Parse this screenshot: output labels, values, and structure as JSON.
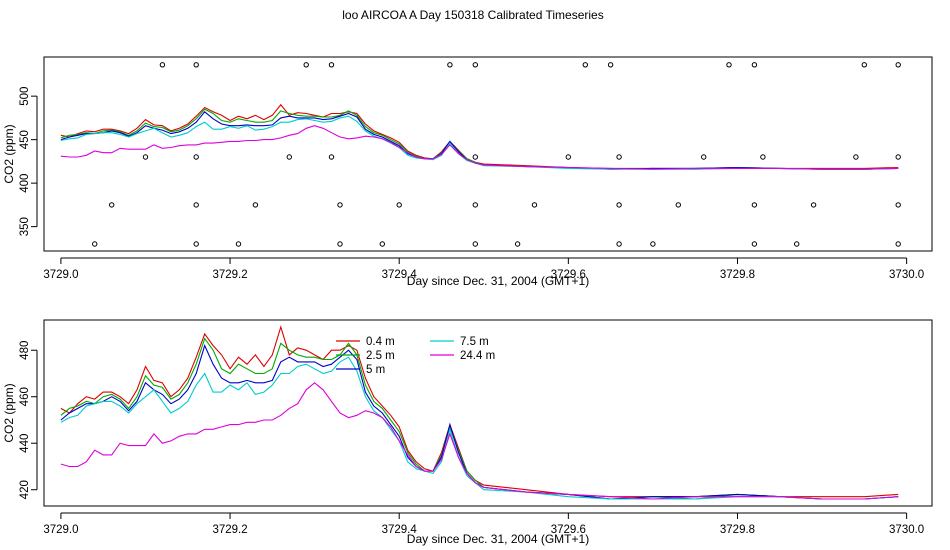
{
  "title": "loo AIRCOA A  Day 150318  Calibrated Timeseries",
  "chart_data": [
    {
      "type": "line",
      "xlabel": "Day since Dec. 31, 2004 (GMT+1)",
      "ylabel": "CO2 (ppm)",
      "xlim": [
        3728.98,
        3730.03
      ],
      "ylim": [
        322,
        545
      ],
      "xticks": [
        3729.0,
        3729.2,
        3729.4,
        3729.6,
        3729.8,
        3730.0
      ],
      "xtick_labels": [
        "3729.0",
        "3729.2",
        "3729.4",
        "3729.6",
        "3729.8",
        "3730.0"
      ],
      "yticks": [
        350,
        400,
        450,
        500
      ],
      "ytick_labels": [
        "350",
        "400",
        "450",
        "500"
      ],
      "x": [
        3729.0,
        3729.01,
        3729.02,
        3729.03,
        3729.04,
        3729.05,
        3729.06,
        3729.07,
        3729.08,
        3729.09,
        3729.1,
        3729.11,
        3729.12,
        3729.13,
        3729.14,
        3729.15,
        3729.16,
        3729.17,
        3729.18,
        3729.19,
        3729.2,
        3729.21,
        3729.22,
        3729.23,
        3729.24,
        3729.25,
        3729.26,
        3729.27,
        3729.28,
        3729.29,
        3729.3,
        3729.31,
        3729.32,
        3729.33,
        3729.34,
        3729.35,
        3729.36,
        3729.37,
        3729.38,
        3729.39,
        3729.4,
        3729.41,
        3729.42,
        3729.43,
        3729.44,
        3729.45,
        3729.46,
        3729.47,
        3729.48,
        3729.49,
        3729.5,
        3729.55,
        3729.6,
        3729.65,
        3729.7,
        3729.75,
        3729.8,
        3729.85,
        3729.9,
        3729.95,
        3729.99
      ],
      "series": [
        {
          "color": "#dd0000",
          "values": [
            455,
            453,
            457,
            460,
            459,
            462,
            462,
            460,
            457,
            463,
            473,
            467,
            466,
            460,
            463,
            468,
            477,
            487,
            482,
            478,
            472,
            477,
            474,
            478,
            473,
            478,
            490,
            478,
            481,
            480,
            478,
            476,
            480,
            480,
            482,
            480,
            468,
            460,
            456,
            452,
            447,
            437,
            432,
            429,
            428,
            436,
            448,
            438,
            428,
            424,
            422,
            420,
            418,
            417,
            417,
            417,
            418,
            417,
            417,
            417,
            418
          ]
        },
        {
          "color": "#00aa00",
          "values": [
            452,
            455,
            456,
            458,
            457,
            460,
            461,
            459,
            455,
            460,
            469,
            465,
            464,
            459,
            461,
            466,
            474,
            485,
            480,
            472,
            470,
            474,
            472,
            470,
            470,
            472,
            483,
            480,
            478,
            477,
            477,
            476,
            476,
            478,
            483,
            478,
            465,
            458,
            455,
            450,
            445,
            436,
            431,
            428,
            428,
            435,
            447,
            437,
            428,
            424,
            421,
            419,
            418,
            416,
            417,
            416,
            418,
            417,
            416,
            416,
            417
          ]
        },
        {
          "color": "#0000cc",
          "values": [
            450,
            453,
            455,
            457,
            457,
            458,
            460,
            458,
            454,
            458,
            466,
            463,
            461,
            457,
            459,
            463,
            470,
            482,
            474,
            468,
            466,
            466,
            467,
            466,
            466,
            467,
            475,
            477,
            475,
            475,
            475,
            473,
            474,
            477,
            480,
            476,
            462,
            456,
            453,
            448,
            443,
            434,
            430,
            428,
            428,
            434,
            448,
            436,
            427,
            423,
            421,
            419,
            418,
            416,
            417,
            417,
            418,
            417,
            416,
            416,
            417
          ]
        },
        {
          "color": "#00cccc",
          "values": [
            449,
            451,
            452,
            456,
            457,
            458,
            458,
            456,
            453,
            457,
            460,
            463,
            458,
            453,
            455,
            458,
            465,
            470,
            462,
            462,
            465,
            463,
            466,
            461,
            462,
            465,
            470,
            470,
            473,
            474,
            472,
            470,
            471,
            475,
            477,
            471,
            460,
            454,
            451,
            446,
            441,
            432,
            429,
            428,
            427,
            432,
            446,
            434,
            426,
            423,
            420,
            419,
            417,
            416,
            416,
            416,
            417,
            417,
            416,
            416,
            417
          ]
        },
        {
          "color": "#dd00dd",
          "values": [
            431,
            430,
            430,
            432,
            437,
            435,
            435,
            440,
            439,
            439,
            439,
            444,
            440,
            441,
            443,
            444,
            444,
            446,
            446,
            447,
            448,
            448,
            449,
            449,
            450,
            450,
            452,
            455,
            457,
            463,
            466,
            463,
            458,
            453,
            451,
            452,
            454,
            453,
            451,
            447,
            441,
            435,
            430,
            428,
            428,
            433,
            444,
            434,
            427,
            423,
            421,
            419,
            418,
            417,
            416,
            417,
            417,
            417,
            416,
            416,
            417
          ]
        }
      ],
      "scatter": {
        "x": [
          3729.12,
          3729.16,
          3729.29,
          3729.32,
          3729.46,
          3729.49,
          3729.62,
          3729.65,
          3729.79,
          3729.82,
          3729.95,
          3729.99,
          3729.1,
          3729.16,
          3729.27,
          3729.32,
          3729.49,
          3729.6,
          3729.66,
          3729.76,
          3729.83,
          3729.94,
          3729.99,
          3729.06,
          3729.16,
          3729.23,
          3729.33,
          3729.4,
          3729.49,
          3729.56,
          3729.66,
          3729.73,
          3729.82,
          3729.89,
          3729.99,
          3729.04,
          3729.16,
          3729.21,
          3729.33,
          3729.38,
          3729.49,
          3729.54,
          3729.66,
          3729.7,
          3729.82,
          3729.87,
          3729.99
        ],
        "y": [
          536,
          536,
          536,
          536,
          536,
          536,
          536,
          536,
          536,
          536,
          536,
          536,
          430,
          430,
          430,
          430,
          430,
          430,
          430,
          430,
          430,
          430,
          430,
          375,
          375,
          375,
          375,
          375,
          375,
          375,
          375,
          375,
          375,
          375,
          375,
          330,
          330,
          330,
          330,
          330,
          330,
          330,
          330,
          330,
          330,
          330,
          330
        ]
      }
    },
    {
      "type": "line",
      "xlabel": "Day since Dec. 31, 2004 (GMT+1)",
      "ylabel": "CO2 (ppm)",
      "xlim": [
        3728.98,
        3730.03
      ],
      "ylim": [
        413,
        493
      ],
      "xticks": [
        3729.0,
        3729.2,
        3729.4,
        3729.6,
        3729.8,
        3730.0
      ],
      "xtick_labels": [
        "3729.0",
        "3729.2",
        "3729.4",
        "3729.6",
        "3729.8",
        "3730.0"
      ],
      "yticks": [
        420,
        440,
        460,
        480
      ],
      "ytick_labels": [
        "420",
        "440",
        "460",
        "480"
      ],
      "legend": {
        "position": "top-center",
        "entries": [
          {
            "label": "0.4 m",
            "color": "#dd0000"
          },
          {
            "label": "2.5 m",
            "color": "#00aa00"
          },
          {
            "label": "5 m",
            "color": "#0000cc"
          },
          {
            "label": "7.5 m",
            "color": "#00cccc"
          },
          {
            "label": "24.4 m",
            "color": "#dd00dd"
          }
        ]
      },
      "x": [
        3729.0,
        3729.01,
        3729.02,
        3729.03,
        3729.04,
        3729.05,
        3729.06,
        3729.07,
        3729.08,
        3729.09,
        3729.1,
        3729.11,
        3729.12,
        3729.13,
        3729.14,
        3729.15,
        3729.16,
        3729.17,
        3729.18,
        3729.19,
        3729.2,
        3729.21,
        3729.22,
        3729.23,
        3729.24,
        3729.25,
        3729.26,
        3729.27,
        3729.28,
        3729.29,
        3729.3,
        3729.31,
        3729.32,
        3729.33,
        3729.34,
        3729.35,
        3729.36,
        3729.37,
        3729.38,
        3729.39,
        3729.4,
        3729.41,
        3729.42,
        3729.43,
        3729.44,
        3729.45,
        3729.46,
        3729.47,
        3729.48,
        3729.49,
        3729.5,
        3729.55,
        3729.6,
        3729.65,
        3729.7,
        3729.75,
        3729.8,
        3729.85,
        3729.9,
        3729.95,
        3729.99
      ],
      "series": [
        {
          "color": "#dd0000",
          "values": [
            455,
            453,
            457,
            460,
            459,
            462,
            462,
            460,
            457,
            463,
            473,
            467,
            466,
            460,
            463,
            468,
            477,
            487,
            482,
            478,
            472,
            477,
            474,
            478,
            473,
            478,
            490,
            478,
            481,
            480,
            478,
            476,
            480,
            480,
            482,
            480,
            468,
            460,
            456,
            452,
            447,
            437,
            432,
            429,
            428,
            436,
            448,
            438,
            428,
            424,
            422,
            420,
            418,
            417,
            417,
            417,
            418,
            417,
            417,
            417,
            418
          ]
        },
        {
          "color": "#00aa00",
          "values": [
            452,
            455,
            456,
            458,
            457,
            460,
            461,
            459,
            455,
            460,
            469,
            465,
            464,
            459,
            461,
            466,
            474,
            485,
            480,
            472,
            470,
            474,
            472,
            470,
            470,
            472,
            483,
            480,
            478,
            477,
            477,
            476,
            476,
            478,
            483,
            478,
            465,
            458,
            455,
            450,
            445,
            436,
            431,
            428,
            428,
            435,
            447,
            437,
            428,
            424,
            421,
            419,
            418,
            416,
            417,
            416,
            418,
            417,
            416,
            416,
            417
          ]
        },
        {
          "color": "#0000cc",
          "values": [
            450,
            453,
            455,
            457,
            457,
            458,
            460,
            458,
            454,
            458,
            466,
            463,
            461,
            457,
            459,
            463,
            470,
            482,
            474,
            468,
            466,
            466,
            467,
            466,
            466,
            467,
            475,
            477,
            475,
            475,
            475,
            473,
            474,
            477,
            480,
            476,
            462,
            456,
            453,
            448,
            443,
            434,
            430,
            428,
            428,
            434,
            448,
            436,
            427,
            423,
            421,
            419,
            418,
            416,
            417,
            417,
            418,
            417,
            416,
            416,
            417
          ]
        },
        {
          "color": "#00cccc",
          "values": [
            449,
            451,
            452,
            456,
            457,
            458,
            458,
            456,
            453,
            457,
            460,
            463,
            458,
            453,
            455,
            458,
            465,
            470,
            462,
            462,
            465,
            463,
            466,
            461,
            462,
            465,
            470,
            470,
            473,
            474,
            472,
            470,
            471,
            475,
            477,
            471,
            460,
            454,
            451,
            446,
            441,
            432,
            429,
            428,
            427,
            432,
            446,
            434,
            426,
            423,
            420,
            419,
            417,
            416,
            416,
            416,
            417,
            417,
            416,
            416,
            417
          ]
        },
        {
          "color": "#dd00dd",
          "values": [
            431,
            430,
            430,
            432,
            437,
            435,
            435,
            440,
            439,
            439,
            439,
            444,
            440,
            441,
            443,
            444,
            444,
            446,
            446,
            447,
            448,
            448,
            449,
            449,
            450,
            450,
            452,
            455,
            457,
            463,
            466,
            463,
            458,
            453,
            451,
            452,
            454,
            453,
            451,
            447,
            441,
            435,
            430,
            428,
            428,
            433,
            444,
            434,
            427,
            423,
            421,
            419,
            418,
            417,
            416,
            417,
            417,
            417,
            416,
            416,
            417
          ]
        }
      ]
    }
  ]
}
